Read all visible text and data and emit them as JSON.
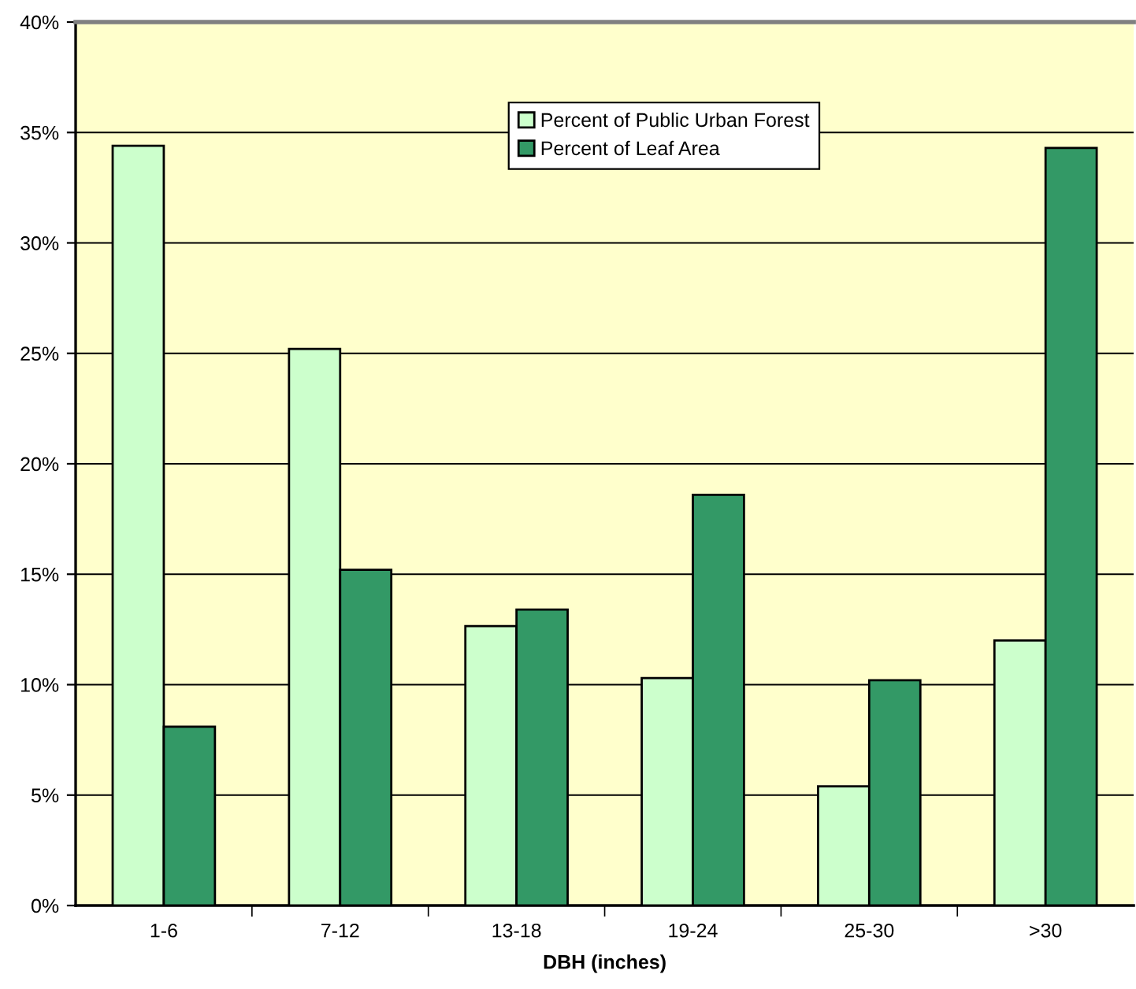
{
  "chart_data": {
    "type": "bar",
    "xlabel": "DBH (inches)",
    "categories": [
      "1-6",
      "7-12",
      "13-18",
      "19-24",
      "25-30",
      ">30"
    ],
    "series": [
      {
        "name": "Percent of Public Urban Forest",
        "color": "#ccffcc",
        "values": [
          34.4,
          25.2,
          12.65,
          10.3,
          5.4,
          12.0
        ]
      },
      {
        "name": "Percent of Leaf Area",
        "color": "#339966",
        "values": [
          8.1,
          15.2,
          13.4,
          18.6,
          10.2,
          34.3
        ]
      }
    ],
    "ylim": [
      0,
      40
    ],
    "yticks": [
      {
        "value": 0,
        "label": "0%"
      },
      {
        "value": 5,
        "label": "5%"
      },
      {
        "value": 10,
        "label": "10%"
      },
      {
        "value": 15,
        "label": "15%"
      },
      {
        "value": 20,
        "label": "20%"
      },
      {
        "value": 25,
        "label": "25%"
      },
      {
        "value": 30,
        "label": "30%"
      },
      {
        "value": 35,
        "label": "35%"
      },
      {
        "value": 40,
        "label": "40%"
      }
    ],
    "grid": "y",
    "legend": "top"
  }
}
